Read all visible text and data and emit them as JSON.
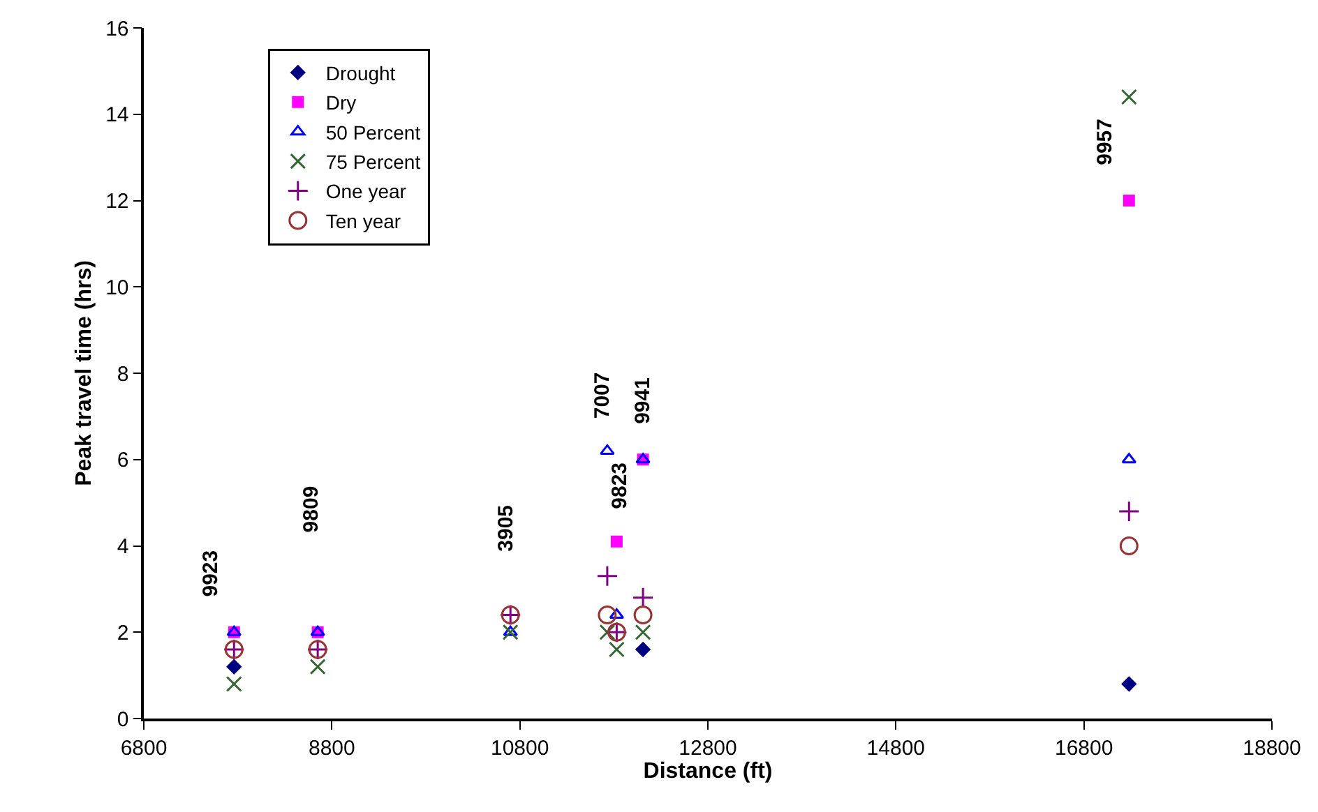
{
  "chart_data": {
    "type": "scatter",
    "xlabel": "Distance (ft)",
    "ylabel": "Peak travel time (hrs)",
    "xlim": [
      6800,
      18800
    ],
    "xticks": [
      6800,
      8800,
      10800,
      12800,
      14800,
      16800,
      18800
    ],
    "ylim": [
      0,
      16
    ],
    "yticks": [
      0,
      2,
      4,
      6,
      8,
      10,
      12,
      14,
      16
    ],
    "legend": "top left",
    "x": [
      7760,
      8650,
      10700,
      11730,
      11830,
      12110,
      17280
    ],
    "series": [
      {
        "name": "Drought",
        "color": "#000080",
        "marker": "diamond",
        "values": [
          1.2,
          null,
          null,
          null,
          null,
          1.6,
          0.8
        ]
      },
      {
        "name": "Dry",
        "color": "#ff00ff",
        "marker": "square",
        "values": [
          2.0,
          2.0,
          null,
          null,
          4.1,
          6.0,
          12.0
        ]
      },
      {
        "name": "50 Percent",
        "color": "#0000ff",
        "marker": "triangle",
        "values": [
          2.0,
          2.0,
          2.0,
          6.2,
          2.4,
          6.0,
          6.0
        ]
      },
      {
        "name": "75 Percent",
        "color": "#336633",
        "marker": "cross",
        "values": [
          0.8,
          1.2,
          2.0,
          2.0,
          1.6,
          2.0,
          14.4
        ]
      },
      {
        "name": "One year",
        "color": "#800080",
        "marker": "plus",
        "values": [
          1.6,
          1.6,
          2.4,
          3.3,
          2.0,
          2.8,
          4.8
        ]
      },
      {
        "name": "Ten year",
        "color": "#993333",
        "marker": "circle",
        "values": [
          1.6,
          1.6,
          2.4,
          2.4,
          2.0,
          2.4,
          4.0
        ]
      }
    ],
    "annotations": [
      "9923",
      "9809",
      "3905",
      "7007",
      "9823",
      "9941",
      "9957"
    ]
  }
}
